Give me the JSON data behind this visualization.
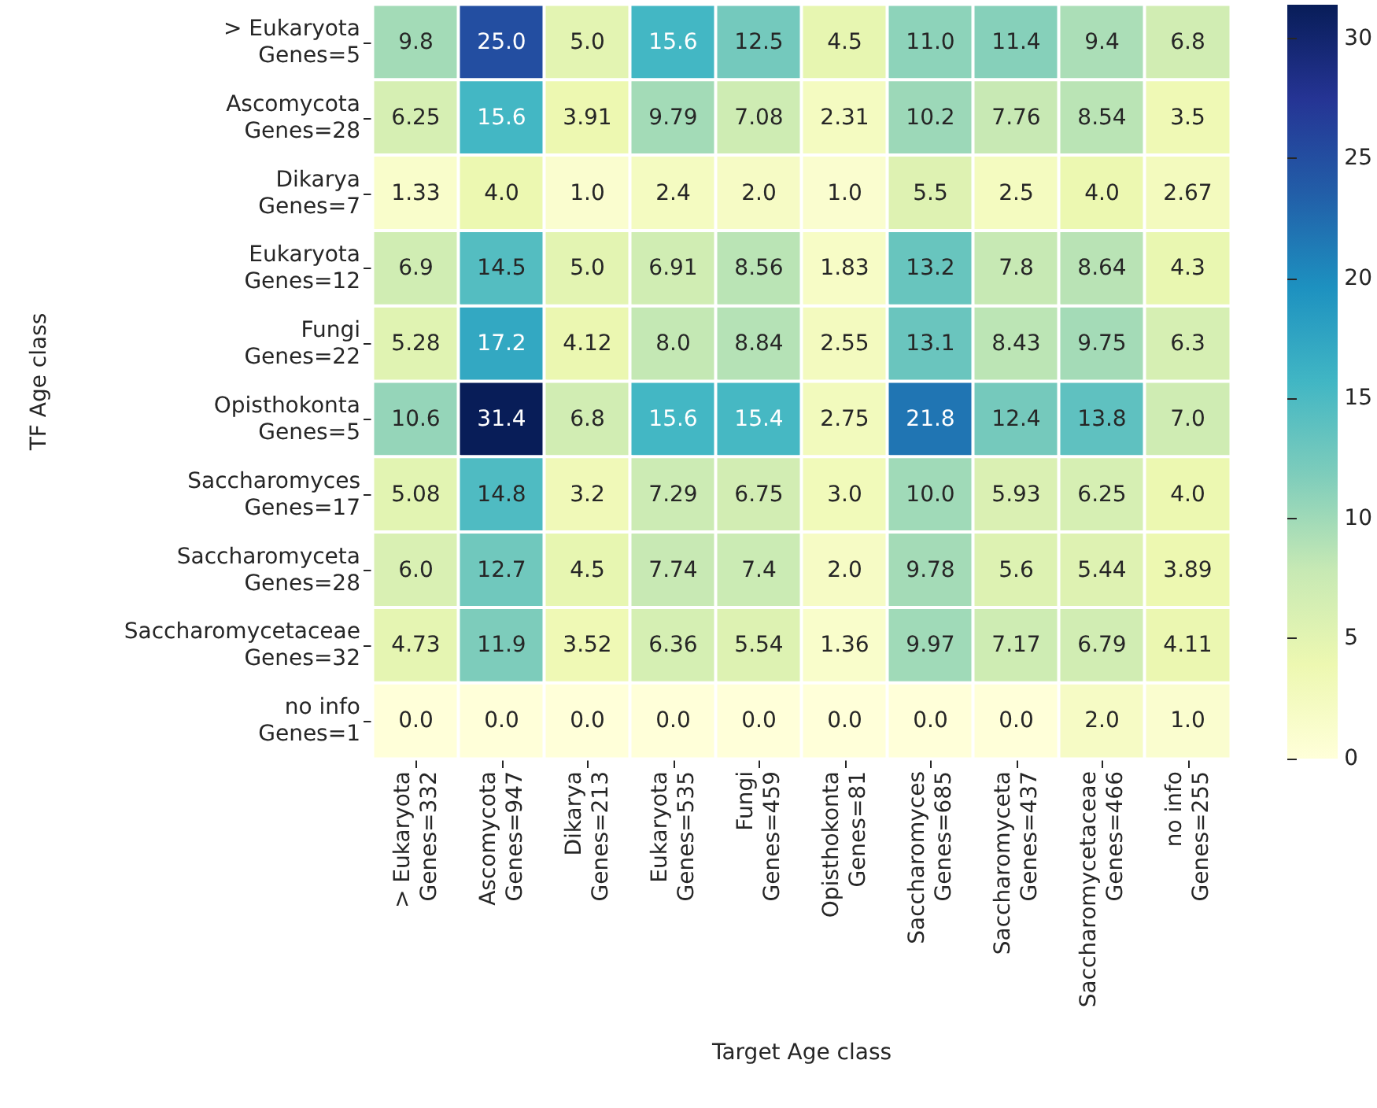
{
  "chart_data": {
    "type": "heatmap",
    "xlabel": "Target Age class",
    "ylabel": "TF Age class",
    "categories": [
      "> Eukaryota\nGenes=332",
      "Ascomycota\nGenes=947",
      "Dikarya\nGenes=213",
      "Eukaryota\nGenes=535",
      "Fungi\nGenes=459",
      "Opisthokonta\nGenes=81",
      "Saccharomyces\nGenes=685",
      "Saccharomyceta\nGenes=437",
      "Saccharomycetaceae\nGenes=466",
      "no info\nGenes=255"
    ],
    "y_categories": [
      "> Eukaryota\nGenes=5",
      "Ascomycota\nGenes=28",
      "Dikarya\nGenes=7",
      "Eukaryota\nGenes=12",
      "Fungi\nGenes=22",
      "Opisthokonta\nGenes=5",
      "Saccharomyces\nGenes=17",
      "Saccharomyceta\nGenes=28",
      "Saccharomycetaceae\nGenes=32",
      "no info\nGenes=1"
    ],
    "cells": [
      [
        9.8,
        25.0,
        5.0,
        15.6,
        12.5,
        4.5,
        11.0,
        11.4,
        9.4,
        6.8
      ],
      [
        6.25,
        15.6,
        3.91,
        9.79,
        7.08,
        2.31,
        10.2,
        7.76,
        8.54,
        3.5
      ],
      [
        1.33,
        4.0,
        1.0,
        2.4,
        2.0,
        1.0,
        5.5,
        2.5,
        4.0,
        2.67
      ],
      [
        6.9,
        14.5,
        5.0,
        6.91,
        8.56,
        1.83,
        13.2,
        7.8,
        8.64,
        4.3
      ],
      [
        5.28,
        17.2,
        4.12,
        8.0,
        8.84,
        2.55,
        13.1,
        8.43,
        9.75,
        6.3
      ],
      [
        10.6,
        31.4,
        6.8,
        15.6,
        15.4,
        2.75,
        21.8,
        12.4,
        13.8,
        7.0
      ],
      [
        5.08,
        14.8,
        3.2,
        7.29,
        6.75,
        3.0,
        10.0,
        5.93,
        6.25,
        4.0
      ],
      [
        6.0,
        12.7,
        4.5,
        7.74,
        7.4,
        2.0,
        9.78,
        5.6,
        5.44,
        3.89
      ],
      [
        4.73,
        11.9,
        3.52,
        6.36,
        5.54,
        1.36,
        9.97,
        7.17,
        6.79,
        4.11
      ],
      [
        0.0,
        0.0,
        0.0,
        0.0,
        0.0,
        0.0,
        0.0,
        0.0,
        2.0,
        1.0
      ]
    ],
    "cell_labels": [
      [
        "9.8",
        "25.0",
        "5.0",
        "15.6",
        "12.5",
        "4.5",
        "11.0",
        "11.4",
        "9.4",
        "6.8"
      ],
      [
        "6.25",
        "15.6",
        "3.91",
        "9.79",
        "7.08",
        "2.31",
        "10.2",
        "7.76",
        "8.54",
        "3.5"
      ],
      [
        "1.33",
        "4.0",
        "1.0",
        "2.4",
        "2.0",
        "1.0",
        "5.5",
        "2.5",
        "4.0",
        "2.67"
      ],
      [
        "6.9",
        "14.5",
        "5.0",
        "6.91",
        "8.56",
        "1.83",
        "13.2",
        "7.8",
        "8.64",
        "4.3"
      ],
      [
        "5.28",
        "17.2",
        "4.12",
        "8.0",
        "8.84",
        "2.55",
        "13.1",
        "8.43",
        "9.75",
        "6.3"
      ],
      [
        "10.6",
        "31.4",
        "6.8",
        "15.6",
        "15.4",
        "2.75",
        "21.8",
        "12.4",
        "13.8",
        "7.0"
      ],
      [
        "5.08",
        "14.8",
        "3.2",
        "7.29",
        "6.75",
        "3.0",
        "10.0",
        "5.93",
        "6.25",
        "4.0"
      ],
      [
        "6.0",
        "12.7",
        "4.5",
        "7.74",
        "7.4",
        "2.0",
        "9.78",
        "5.6",
        "5.44",
        "3.89"
      ],
      [
        "4.73",
        "11.9",
        "3.52",
        "6.36",
        "5.54",
        "1.36",
        "9.97",
        "7.17",
        "6.79",
        "4.11"
      ],
      [
        "0.0",
        "0.0",
        "0.0",
        "0.0",
        "0.0",
        "0.0",
        "0.0",
        "0.0",
        "2.0",
        "1.0"
      ]
    ],
    "clim": [
      0,
      31.4
    ],
    "cticks": [
      0,
      5,
      10,
      15,
      20,
      25,
      30
    ]
  }
}
